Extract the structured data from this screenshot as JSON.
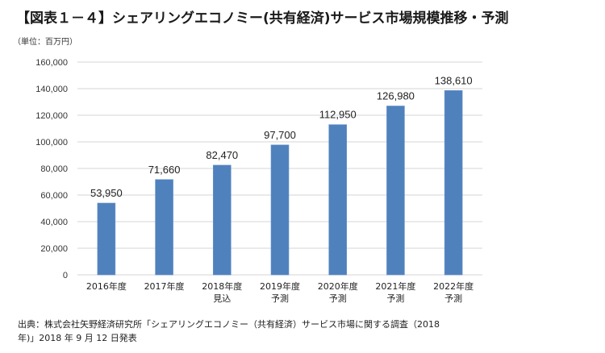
{
  "header": {
    "title": "【図表１－４】シェアリングエコノミー(共有経済)サービス市場規模推移・予測",
    "unit": "（単位：百万円）"
  },
  "chart_data": {
    "type": "bar",
    "title": "【図表１－４】シェアリングエコノミー(共有経済)サービス市場規模推移・予測",
    "xlabel": "",
    "ylabel": "（単位：百万円）",
    "categories": [
      [
        "2016年度",
        ""
      ],
      [
        "2017年度",
        ""
      ],
      [
        "2018年度",
        "見込"
      ],
      [
        "2019年度",
        "予測"
      ],
      [
        "2020年度",
        "予測"
      ],
      [
        "2021年度",
        "予測"
      ],
      [
        "2022年度",
        "予測"
      ]
    ],
    "values": [
      53950,
      71660,
      82470,
      97700,
      112950,
      126980,
      138610
    ],
    "data_labels": [
      "53,950",
      "71,660",
      "82,470",
      "97,700",
      "112,950",
      "126,980",
      "138,610"
    ],
    "ylim": [
      0,
      160000
    ],
    "yticks": [
      0,
      20000,
      40000,
      60000,
      80000,
      100000,
      120000,
      140000,
      160000
    ],
    "ytick_labels": [
      "0",
      "20,000",
      "40,000",
      "60,000",
      "80,000",
      "100,000",
      "120,000",
      "140,000",
      "160,000"
    ],
    "grid": true,
    "legend": "none",
    "bar_color": "#4f81bd",
    "grid_color": "#e3e3e3"
  },
  "footer": {
    "source_line1": "出典：株式会社矢野経済研究所「シェアリングエコノミー（共有経済）サービス市場に関する調査（2018",
    "source_line2": "年)」2018 年 9 月 12 日発表"
  }
}
